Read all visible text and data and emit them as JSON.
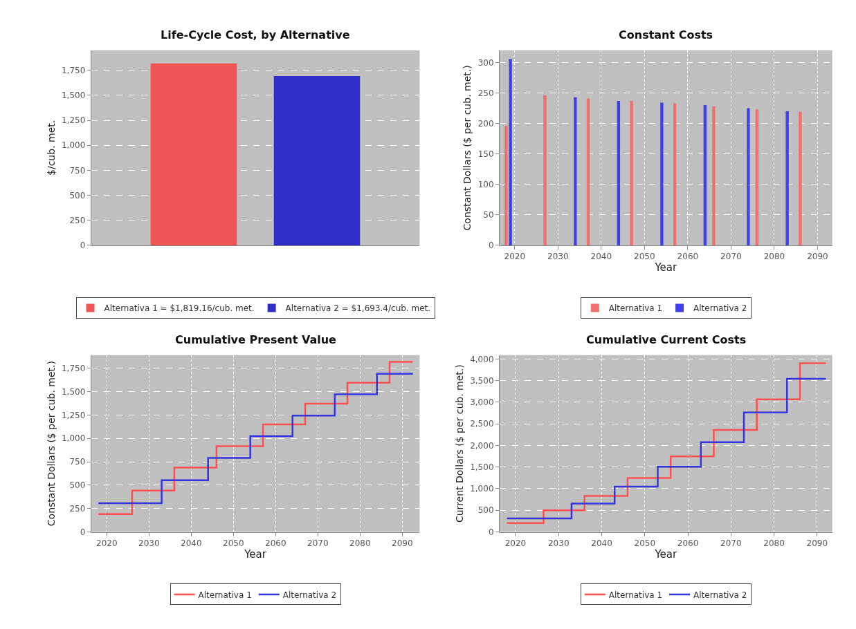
{
  "chart_data": [
    {
      "type": "bar",
      "title": "Life-Cycle Cost, by Alternative",
      "ylabel": "$/cub. met.",
      "categories": [
        null
      ],
      "legend": "bottom",
      "grid": "y",
      "tick_labels": "y",
      "ylim": [
        0,
        1950
      ],
      "yticks": [
        0,
        250,
        500,
        750,
        {
          "value": 1000,
          "label": "1,000"
        },
        {
          "value": 1250,
          "label": "1,250"
        },
        {
          "value": 1500,
          "label": "1,500"
        },
        {
          "value": 1750,
          "label": "1,750"
        }
      ],
      "series": [
        {
          "name": "Alternativa 1 = $1,819.16/cub. met.",
          "color": "#f05555",
          "values": [
            1819.16
          ]
        },
        {
          "name": "Alternativa 2 = $1,693.4/cub. met.",
          "color": "#3030c8",
          "values": [
            1693.4
          ]
        }
      ]
    },
    {
      "type": "bar",
      "title": "Constant Costs",
      "xlabel": "Year",
      "ylabel": "Constant Dollars ($ per cub. met.)",
      "legend": "bottom",
      "grid": true,
      "xlim": [
        2016.5,
        2093.4
      ],
      "xticks": [
        2020,
        2030,
        2040,
        2050,
        2060,
        2070,
        2080,
        2090
      ],
      "ylim": [
        0,
        320
      ],
      "yticks": [
        0,
        50,
        100,
        150,
        200,
        250,
        300
      ],
      "series": [
        {
          "name": "Alternativa 1",
          "color": "#f07070",
          "x": [
            2018,
            2027,
            2037,
            2047,
            2057,
            2066,
            2076,
            2086
          ],
          "values": [
            196,
            246,
            241,
            237,
            233,
            228,
            223,
            219
          ]
        },
        {
          "name": "Alternativa 2",
          "color": "#4040e8",
          "x": [
            2019,
            2034,
            2044,
            2054,
            2064,
            2074,
            2083
          ],
          "values": [
            306,
            243,
            237,
            234,
            230,
            225,
            220
          ]
        }
      ]
    },
    {
      "type": "step",
      "title": "Cumulative Present Value",
      "xlabel": "Year",
      "ylabel": "Constant Dollars ($ per cub. met.)",
      "legend": "bottom",
      "grid": true,
      "line_style": "solid",
      "xlim": [
        2016.3,
        2094.1
      ],
      "xticks": [
        2020,
        2030,
        2040,
        2050,
        2060,
        2070,
        2080,
        2090
      ],
      "ylim": [
        0,
        1890
      ],
      "yticks": [
        0,
        250,
        500,
        750,
        {
          "value": 1000,
          "label": "1,000"
        },
        {
          "value": 1250,
          "label": "1,250"
        },
        {
          "value": 1500,
          "label": "1,500"
        },
        {
          "value": 1750,
          "label": "1,750"
        }
      ],
      "series": [
        {
          "name": "Alternativa 1",
          "color": "#ff5050",
          "x": [
            2018,
            2026,
            2036,
            2046,
            2057,
            2067,
            2077,
            2087,
            2092.5
          ],
          "values": [
            191,
            441,
            687,
            917,
            1150,
            1371,
            1594,
            1817,
            1817
          ]
        },
        {
          "name": "Alternativa 2",
          "color": "#3535e0",
          "x": [
            2018,
            2033,
            2044,
            2054,
            2064,
            2074,
            2084,
            2092.5
          ],
          "values": [
            307,
            553,
            791,
            1024,
            1244,
            1470,
            1691,
            1691
          ]
        }
      ]
    },
    {
      "type": "step",
      "title": "Cumulative Current Costs",
      "xlabel": "Year",
      "ylabel": "Current Dollars ($ per cub. met.)",
      "legend": "bottom",
      "grid": true,
      "line_style": "solid",
      "xlim": [
        2016.3,
        2093.5
      ],
      "xticks": [
        2020,
        2030,
        2040,
        2050,
        2060,
        2070,
        2080,
        2090
      ],
      "ylim": [
        0,
        4090
      ],
      "yticks": [
        0,
        500,
        {
          "value": 1000,
          "label": "1,000"
        },
        {
          "value": 1500,
          "label": "1,500"
        },
        {
          "value": 2000,
          "label": "2,000"
        },
        {
          "value": 2500,
          "label": "2,500"
        },
        {
          "value": 3000,
          "label": "3,000"
        },
        {
          "value": 3500,
          "label": "3,500"
        },
        {
          "value": 4000,
          "label": "4,000"
        }
      ],
      "series": [
        {
          "name": "Alternativa 1",
          "color": "#ff5050",
          "x": [
            2018,
            2026.5,
            2036,
            2046,
            2056,
            2066,
            2076,
            2086,
            2092
          ],
          "values": [
            204,
            499,
            831,
            1249,
            1748,
            2359,
            3067,
            3903,
            3903
          ]
        },
        {
          "name": "Alternativa 2",
          "color": "#3535e0",
          "x": [
            2018,
            2033,
            2043,
            2053,
            2063,
            2073,
            2083,
            2092
          ],
          "values": [
            311,
            654,
            1046,
            1507,
            2075,
            2761,
            3544,
            3544
          ]
        }
      ]
    }
  ]
}
